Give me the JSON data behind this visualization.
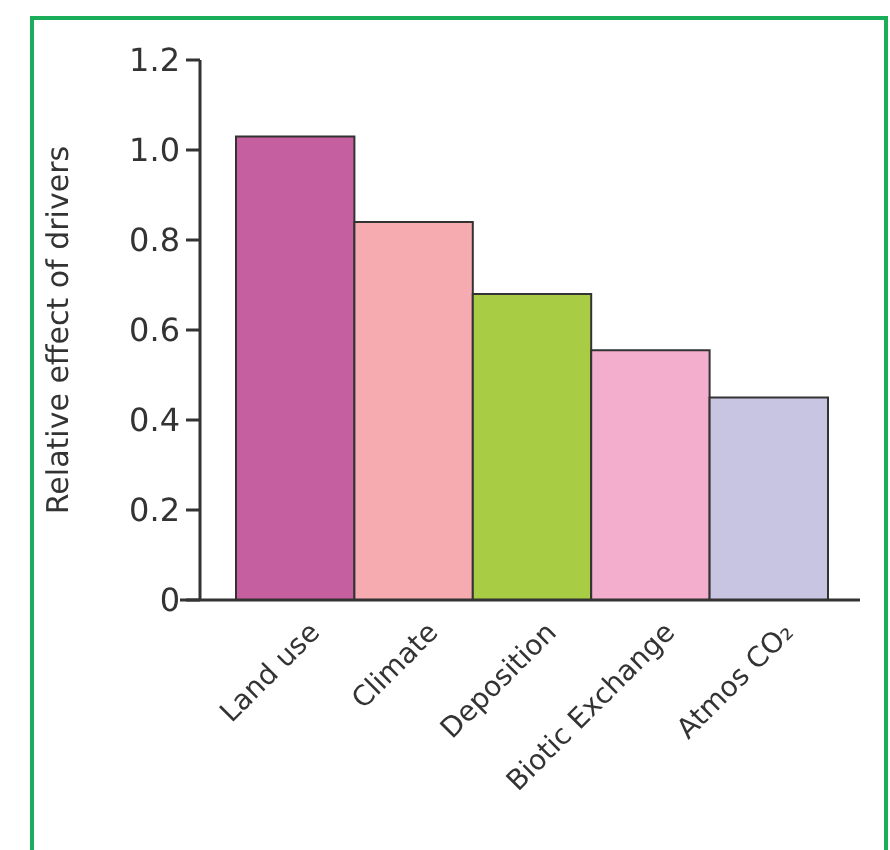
{
  "chart_data": {
    "type": "bar",
    "ylabel": "Relative effect of drivers",
    "categories": [
      "Land use",
      "Climate",
      "Deposition",
      "Biotic Exchange",
      "Atmos CO₂"
    ],
    "values": [
      1.03,
      0.84,
      0.68,
      0.555,
      0.45
    ],
    "colors": [
      "#c65fa0",
      "#f5abb0",
      "#a8cd45",
      "#f4aecd",
      "#c8c5e2"
    ],
    "ylim": [
      0,
      1.2
    ],
    "yticks": [
      0,
      0.2,
      0.4,
      0.6,
      0.8,
      {
        "value": 1,
        "label": "1.0"
      },
      1.2
    ],
    "grid": false
  }
}
